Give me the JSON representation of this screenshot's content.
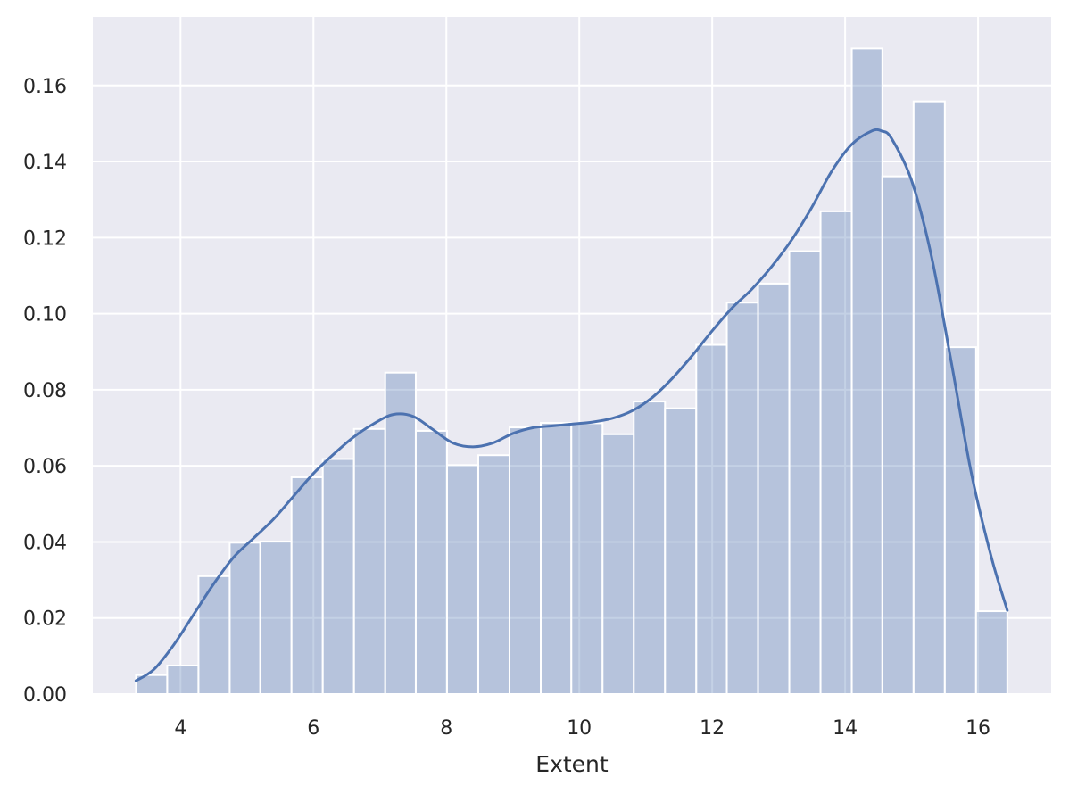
{
  "chart_data": {
    "type": "bar",
    "xlabel": "Extent",
    "ylabel": "",
    "xlim": [
      2.68,
      17.1
    ],
    "ylim": [
      0,
      0.178
    ],
    "x_ticks": [
      4,
      6,
      8,
      10,
      12,
      14,
      16
    ],
    "y_ticks": [
      0.0,
      0.02,
      0.04,
      0.06,
      0.08,
      0.1,
      0.12,
      0.14,
      0.16
    ],
    "x_tick_labels": [
      "4",
      "6",
      "8",
      "10",
      "12",
      "14",
      "16"
    ],
    "y_tick_labels": [
      "0.00",
      "0.02",
      "0.04",
      "0.06",
      "0.08",
      "0.10",
      "0.12",
      "0.14",
      "0.16"
    ],
    "grid": true,
    "legend": "none",
    "bins": {
      "edges": [
        3.33,
        3.8,
        4.27,
        4.74,
        5.2,
        5.67,
        6.14,
        6.61,
        7.08,
        7.54,
        8.01,
        8.48,
        8.95,
        9.42,
        9.88,
        10.35,
        10.82,
        11.29,
        11.76,
        12.22,
        12.69,
        13.16,
        13.63,
        14.1,
        14.56,
        15.03,
        15.5,
        15.97,
        16.44
      ],
      "values": [
        0.005,
        0.0075,
        0.031,
        0.0398,
        0.0401,
        0.057,
        0.0618,
        0.0697,
        0.0845,
        0.0692,
        0.0602,
        0.0628,
        0.0701,
        0.0713,
        0.0712,
        0.0683,
        0.0769,
        0.0751,
        0.0918,
        0.1029,
        0.1079,
        0.1164,
        0.1269,
        0.1697,
        0.1361,
        0.1558,
        0.0912,
        0.0218
      ]
    },
    "kde": {
      "x": [
        3.33,
        3.6,
        3.9,
        4.2,
        4.5,
        4.8,
        5.1,
        5.4,
        5.7,
        6.0,
        6.3,
        6.6,
        6.9,
        7.2,
        7.5,
        7.8,
        8.1,
        8.4,
        8.7,
        9.0,
        9.3,
        9.6,
        9.9,
        10.2,
        10.5,
        10.8,
        11.1,
        11.4,
        11.7,
        12.0,
        12.3,
        12.6,
        12.9,
        13.2,
        13.5,
        13.8,
        14.1,
        14.4,
        14.55,
        14.7,
        15.0,
        15.3,
        15.6,
        15.9,
        16.2,
        16.44
      ],
      "y": [
        0.0035,
        0.0065,
        0.013,
        0.021,
        0.029,
        0.036,
        0.041,
        0.046,
        0.052,
        0.058,
        0.063,
        0.0675,
        0.071,
        0.0735,
        0.073,
        0.0695,
        0.066,
        0.065,
        0.066,
        0.0685,
        0.07,
        0.0705,
        0.071,
        0.0715,
        0.0725,
        0.0745,
        0.078,
        0.083,
        0.089,
        0.0955,
        0.1015,
        0.1065,
        0.1125,
        0.1195,
        0.128,
        0.1375,
        0.1445,
        0.148,
        0.148,
        0.146,
        0.135,
        0.115,
        0.087,
        0.058,
        0.036,
        0.022
      ]
    },
    "colors": {
      "plot_background": "#eaeaf2",
      "grid": "#ffffff",
      "bar_fill": "#4c72b0",
      "bar_opacity": 0.33,
      "bar_edge": "#ffffff",
      "kde_line": "#4c72b0",
      "text": "#262626"
    }
  }
}
